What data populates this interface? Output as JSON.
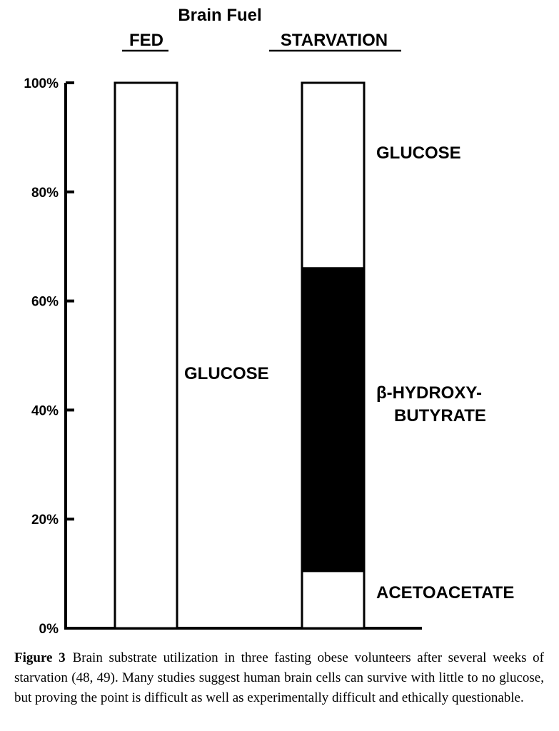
{
  "chart_data": {
    "type": "bar",
    "stacked": true,
    "title": "Brain Fuel",
    "categories": [
      "FED",
      "STARVATION"
    ],
    "series": [
      {
        "name": "ACETOACETATE",
        "values": [
          0,
          10.5
        ],
        "fill": "#ffffff"
      },
      {
        "name": "β-HYDROXY-BUTYRATE",
        "values": [
          0,
          55.5
        ],
        "fill": "#000000"
      },
      {
        "name": "GLUCOSE",
        "values": [
          100,
          34
        ],
        "fill": "#ffffff"
      }
    ],
    "segment_labels": {
      "fed_glucose": "GLUCOSE",
      "starvation_glucose": "GLUCOSE",
      "bhb_line1": "β-HYDROXY-",
      "bhb_line2": "BUTYRATE",
      "acetoacetate": "ACETOACETATE"
    },
    "y_ticks": [
      0,
      20,
      40,
      60,
      80,
      100
    ],
    "y_tick_labels": [
      "0%",
      "20%",
      "40%",
      "60%",
      "80%",
      "100%"
    ],
    "ylim": [
      0,
      100
    ],
    "grid": false,
    "legend": "none"
  },
  "caption": {
    "label": "Figure 3",
    "text": "Brain substrate utilization in three fasting obese volunteers after several weeks of starvation (48, 49). Many studies suggest human brain cells can survive with little to no glucose, but proving the point is difficult as well as experimentally difficult and ethically questionable."
  }
}
